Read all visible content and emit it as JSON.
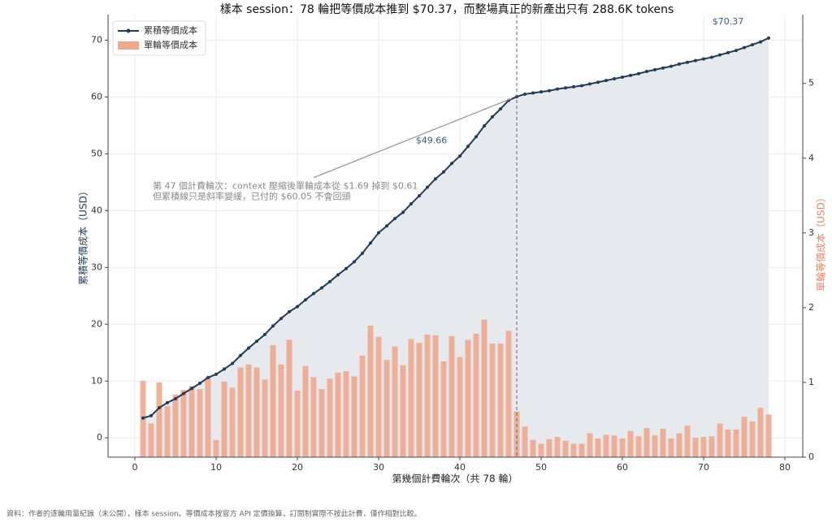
{
  "chart_data": {
    "type": "bar_line_dual",
    "title": "樣本 session：78 輪把等價成本推到 $70.37，而整場真正的新產出只有 288.6K tokens",
    "xlabel": "第幾個計費輪次（共 78 輪）",
    "ylabel": "累積等價成本（USD）",
    "y2label": "單輪等價成本（USD）",
    "footnote": "資料：作者的逐輪用量紀錄（未公開），樣本 session。等價成本按官方 API 定價換算，訂閱制實際不按此計費，僅作相對比較。",
    "annotations": {
      "end_label": "$70.37",
      "mid_label": "$49.66",
      "note_line1": "第 47 個計費輪次：context 壓縮後單輪成本從 $1.69 掉到 $0.61",
      "note_line2": "但累積線只是斜率變緩，已付的 $60.05 不會回頭"
    },
    "x": [
      1,
      2,
      3,
      4,
      5,
      6,
      7,
      8,
      9,
      10,
      11,
      12,
      13,
      14,
      15,
      16,
      17,
      18,
      19,
      20,
      21,
      22,
      23,
      24,
      25,
      26,
      27,
      28,
      29,
      30,
      31,
      32,
      33,
      34,
      35,
      36,
      37,
      38,
      39,
      40,
      41,
      42,
      43,
      44,
      45,
      46,
      47,
      48,
      49,
      50,
      51,
      52,
      53,
      54,
      55,
      56,
      57,
      58,
      59,
      60,
      61,
      62,
      63,
      64,
      65,
      66,
      67,
      68,
      69,
      70,
      71,
      72,
      73,
      74,
      75,
      76,
      77,
      78
    ],
    "series": [
      {
        "name": "累積等價成本",
        "color": "#243b55",
        "axis": "y",
        "values": [
          3.5,
          3.9,
          5.3,
          6.2,
          6.9,
          7.8,
          8.7,
          9.6,
          10.6,
          11.2,
          12.1,
          13.1,
          14.5,
          15.8,
          17,
          18.2,
          19.7,
          21,
          22.2,
          23.1,
          24.3,
          25.4,
          26.4,
          27.5,
          28.7,
          29.8,
          31,
          32.5,
          34.3,
          36.1,
          37.3,
          38.6,
          39.7,
          41.2,
          42.6,
          44.1,
          45.6,
          46.8,
          48.3,
          49.6,
          51.3,
          53,
          54.9,
          56.5,
          57.9,
          59.4,
          60.05,
          60.5,
          60.7,
          60.9,
          61.1,
          61.4,
          61.6,
          61.8,
          62.0,
          62.3,
          62.6,
          62.9,
          63.2,
          63.5,
          63.8,
          64.1,
          64.5,
          64.8,
          65.1,
          65.4,
          65.8,
          66.1,
          66.4,
          66.7,
          67.0,
          67.4,
          67.8,
          68.2,
          68.7,
          69.2,
          69.7,
          70.37
        ]
      },
      {
        "name": "單輪等價成本",
        "color": "#eea88e",
        "axis": "y2",
        "values": [
          1.02,
          0.45,
          1.0,
          0.68,
          0.84,
          0.9,
          0.95,
          0.91,
          1.07,
          0.23,
          1.01,
          0.93,
          1.2,
          1.24,
          1.2,
          1.04,
          1.5,
          1.24,
          1.57,
          0.89,
          1.22,
          1.07,
          0.91,
          1.05,
          1.13,
          1.15,
          1.08,
          1.36,
          1.76,
          1.61,
          1.3,
          1.48,
          1.23,
          1.58,
          1.53,
          1.64,
          1.63,
          1.28,
          1.62,
          1.34,
          1.57,
          1.65,
          1.84,
          1.52,
          1.52,
          1.69,
          0.61,
          0.41,
          0.23,
          0.18,
          0.24,
          0.27,
          0.22,
          0.18,
          0.18,
          0.32,
          0.25,
          0.3,
          0.29,
          0.25,
          0.35,
          0.28,
          0.39,
          0.29,
          0.38,
          0.25,
          0.32,
          0.42,
          0.26,
          0.27,
          0.28,
          0.45,
          0.37,
          0.37,
          0.54,
          0.48,
          0.66,
          0.57
        ]
      }
    ],
    "xlim": [
      -3.3,
      82.2
    ],
    "xticks": [
      0,
      10,
      20,
      30,
      40,
      50,
      60,
      70,
      80
    ],
    "ylim": [
      -3.4,
      74.5
    ],
    "yticks": [
      0,
      10,
      20,
      30,
      40,
      50,
      60,
      70
    ],
    "y2lim": [
      0,
      5.92
    ],
    "y2ticks": [
      0,
      1,
      2,
      3,
      4,
      5
    ],
    "grid": true,
    "legend": "upper left"
  }
}
